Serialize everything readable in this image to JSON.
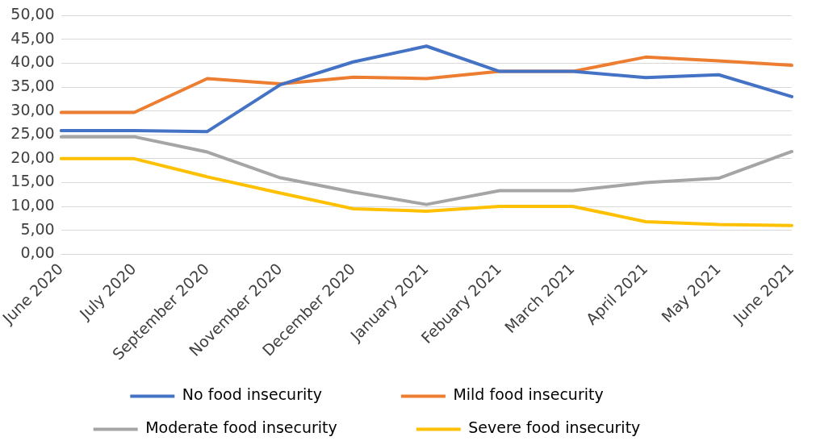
{
  "chart_data": {
    "type": "line",
    "categories": [
      "June 2020",
      "July 2020",
      "September 2020",
      "November 2020",
      "December 2020",
      "January 2021",
      "Febuary 2021",
      "March 2021",
      "April 2021",
      "May 2021",
      "June 2021"
    ],
    "series": [
      {
        "name": "No food insecurity",
        "color": "#4472c4",
        "values": [
          25.9,
          25.9,
          25.7,
          35.5,
          40.3,
          43.6,
          38.3,
          38.3,
          37.0,
          37.6,
          33.0
        ]
      },
      {
        "name": "Mild food insecurity",
        "color": "#ed7d31",
        "values": [
          29.7,
          29.7,
          36.8,
          35.7,
          37.1,
          36.8,
          38.3,
          38.3,
          41.3,
          40.5,
          39.6
        ]
      },
      {
        "name": "Moderate food insecurity",
        "color": "#a5a5a5",
        "values": [
          24.6,
          24.6,
          21.4,
          16.0,
          13.0,
          10.4,
          13.3,
          13.3,
          15.0,
          15.9,
          21.5
        ]
      },
      {
        "name": "Severe food insecurity",
        "color": "#ffc000",
        "values": [
          20.0,
          20.0,
          16.2,
          12.8,
          9.5,
          9.0,
          10.0,
          10.0,
          6.8,
          6.2,
          6.0
        ]
      }
    ],
    "ylim": [
      0,
      50
    ],
    "yticks": [
      {
        "value": 0,
        "label": "0,00"
      },
      {
        "value": 5,
        "label": "5,00"
      },
      {
        "value": 10,
        "label": "10,00"
      },
      {
        "value": 15,
        "label": "15,00"
      },
      {
        "value": 20,
        "label": "20,00"
      },
      {
        "value": 25,
        "label": "25,00"
      },
      {
        "value": 30,
        "label": "30,00"
      },
      {
        "value": 35,
        "label": "35,00"
      },
      {
        "value": 40,
        "label": "40,00"
      },
      {
        "value": 45,
        "label": "45,00"
      },
      {
        "value": 50,
        "label": "50,00"
      }
    ],
    "grid": "y",
    "legend": "bottom",
    "marker": "none",
    "line_style": "solid"
  }
}
